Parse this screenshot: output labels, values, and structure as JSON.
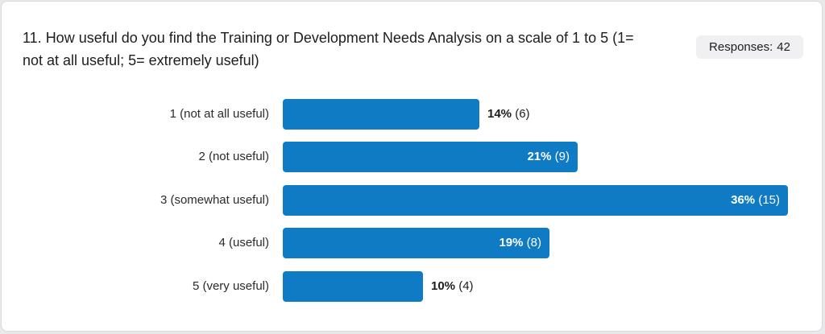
{
  "question": {
    "line1": "11. How useful do you find the Training or Development Needs Analysis on a scale of 1 to 5 (1=",
    "line2": "not at all useful; 5= extremely useful)"
  },
  "responses": {
    "label": "Responses:",
    "count": "42"
  },
  "colors": {
    "bar": "#0f7bc4"
  },
  "chart_data": {
    "type": "bar",
    "orientation": "horizontal",
    "categories": [
      "1 (not at all useful)",
      "2 (not useful)",
      "3 (somewhat useful)",
      "4 (useful)",
      "5 (very useful)"
    ],
    "values": [
      14,
      21,
      36,
      19,
      10
    ],
    "counts": [
      6,
      9,
      15,
      8,
      4
    ],
    "percent_labels": [
      "14%",
      "21%",
      "36%",
      "19%",
      "10%"
    ],
    "count_labels": [
      "(6)",
      "(9)",
      "(15)",
      "(8)",
      "(4)"
    ],
    "max_value": 36,
    "grid": false,
    "legend": "none"
  }
}
